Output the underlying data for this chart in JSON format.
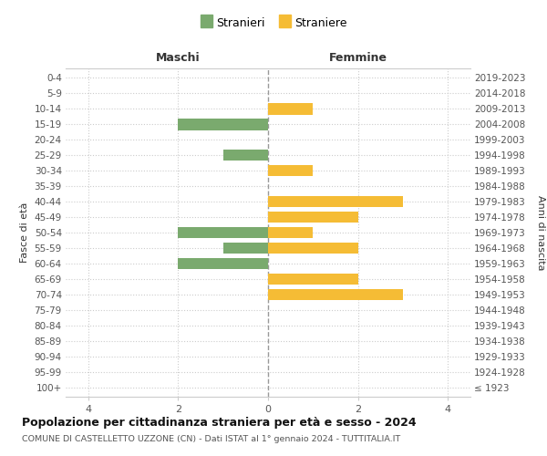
{
  "age_groups": [
    "100+",
    "95-99",
    "90-94",
    "85-89",
    "80-84",
    "75-79",
    "70-74",
    "65-69",
    "60-64",
    "55-59",
    "50-54",
    "45-49",
    "40-44",
    "35-39",
    "30-34",
    "25-29",
    "20-24",
    "15-19",
    "10-14",
    "5-9",
    "0-4"
  ],
  "birth_years": [
    "≤ 1923",
    "1924-1928",
    "1929-1933",
    "1934-1938",
    "1939-1943",
    "1944-1948",
    "1949-1953",
    "1954-1958",
    "1959-1963",
    "1964-1968",
    "1969-1973",
    "1974-1978",
    "1979-1983",
    "1984-1988",
    "1989-1993",
    "1994-1998",
    "1999-2003",
    "2004-2008",
    "2009-2013",
    "2014-2018",
    "2019-2023"
  ],
  "males": [
    0,
    0,
    0,
    0,
    0,
    0,
    0,
    0,
    2,
    1,
    2,
    0,
    0,
    0,
    0,
    1,
    0,
    2,
    0,
    0,
    0
  ],
  "females": [
    0,
    0,
    0,
    0,
    0,
    0,
    3,
    2,
    0,
    2,
    1,
    2,
    3,
    0,
    1,
    0,
    0,
    0,
    1,
    0,
    0
  ],
  "male_color": "#7aaa6e",
  "female_color": "#f5bc35",
  "title": "Popolazione per cittadinanza straniera per età e sesso - 2024",
  "subtitle": "COMUNE DI CASTELLETTO UZZONE (CN) - Dati ISTAT al 1° gennaio 2024 - TUTTITALIA.IT",
  "legend_male": "Stranieri",
  "legend_female": "Straniere",
  "header_left": "Maschi",
  "header_right": "Femmine",
  "ylabel_left": "Fasce di età",
  "ylabel_right": "Anni di nascita",
  "xlim": 4.5,
  "xticks": [
    -4,
    -2,
    0,
    2,
    4
  ],
  "xticklabels": [
    "4",
    "2",
    "0",
    "2",
    "4"
  ],
  "background_color": "#ffffff",
  "grid_color": "#cccccc",
  "center_line_color": "#999999",
  "tick_label_color": "#555555",
  "header_color": "#333333",
  "title_color": "#111111",
  "subtitle_color": "#555555"
}
